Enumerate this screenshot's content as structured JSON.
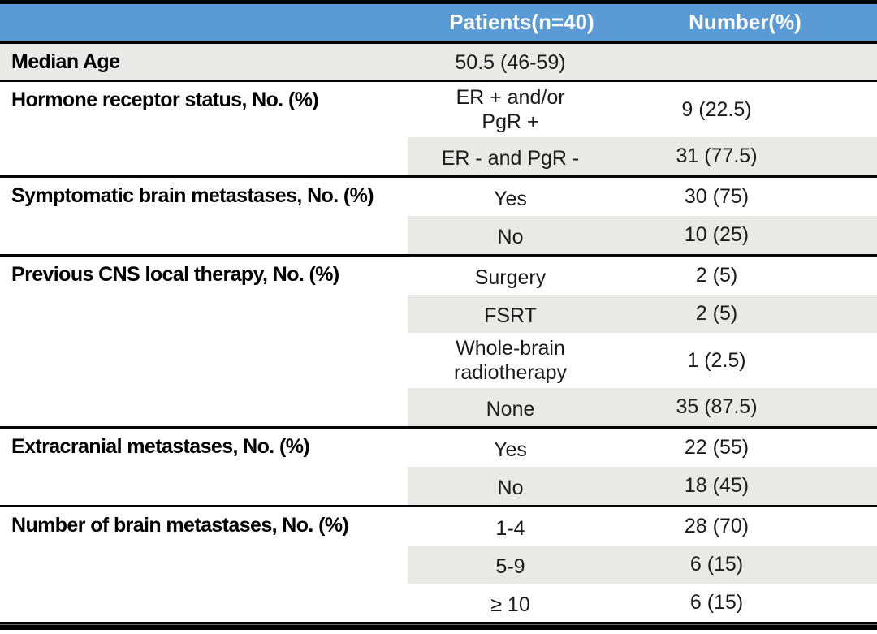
{
  "colors": {
    "header_bg": "#5b9bd5",
    "header_text": "#ffffff",
    "row_shade": "#e9e9e8",
    "border": "#000000",
    "body_text": "#1a1a1a"
  },
  "table": {
    "header": {
      "patients": "Patients(n=40)",
      "number": "Number(%)"
    },
    "sections": [
      {
        "label": "Median Age",
        "full_shade": true,
        "rows": [
          {
            "category": "50.5 (46-59)",
            "value": "",
            "shaded": false,
            "multiline": false
          }
        ]
      },
      {
        "label": "Hormone receptor status, No. (%)",
        "full_shade": false,
        "rows": [
          {
            "category": "ER + and/or\nPgR +",
            "value": "9 (22.5)",
            "shaded": false,
            "multiline": true
          },
          {
            "category": "ER - and PgR -",
            "value": "31 (77.5)",
            "shaded": true,
            "multiline": false
          }
        ]
      },
      {
        "label": "Symptomatic brain metastases, No. (%)",
        "full_shade": false,
        "rows": [
          {
            "category": "Yes",
            "value": "30 (75)",
            "shaded": false,
            "multiline": false
          },
          {
            "category": "No",
            "value": "10 (25)",
            "shaded": true,
            "multiline": false
          }
        ]
      },
      {
        "label": "Previous CNS local therapy, No. (%)",
        "full_shade": false,
        "rows": [
          {
            "category": "Surgery",
            "value": "2 (5)",
            "shaded": false,
            "multiline": false
          },
          {
            "category": "FSRT",
            "value": "2 (5)",
            "shaded": true,
            "multiline": false
          },
          {
            "category": "Whole-brain\nradiotherapy",
            "value": "1 (2.5)",
            "shaded": false,
            "multiline": true
          },
          {
            "category": "None",
            "value": "35 (87.5)",
            "shaded": true,
            "multiline": false
          }
        ]
      },
      {
        "label": "Extracranial metastases, No. (%)",
        "full_shade": false,
        "rows": [
          {
            "category": "Yes",
            "value": "22 (55)",
            "shaded": false,
            "multiline": false
          },
          {
            "category": "No",
            "value": "18 (45)",
            "shaded": true,
            "multiline": false
          }
        ]
      },
      {
        "label": "Number of brain metastases, No. (%)",
        "full_shade": false,
        "rows": [
          {
            "category": "1-4",
            "value": "28 (70)",
            "shaded": false,
            "multiline": false
          },
          {
            "category": "5-9",
            "value": "6 (15)",
            "shaded": true,
            "multiline": false
          },
          {
            "category": "≥ 10",
            "value": "6 (15)",
            "shaded": false,
            "multiline": false
          }
        ]
      }
    ]
  }
}
